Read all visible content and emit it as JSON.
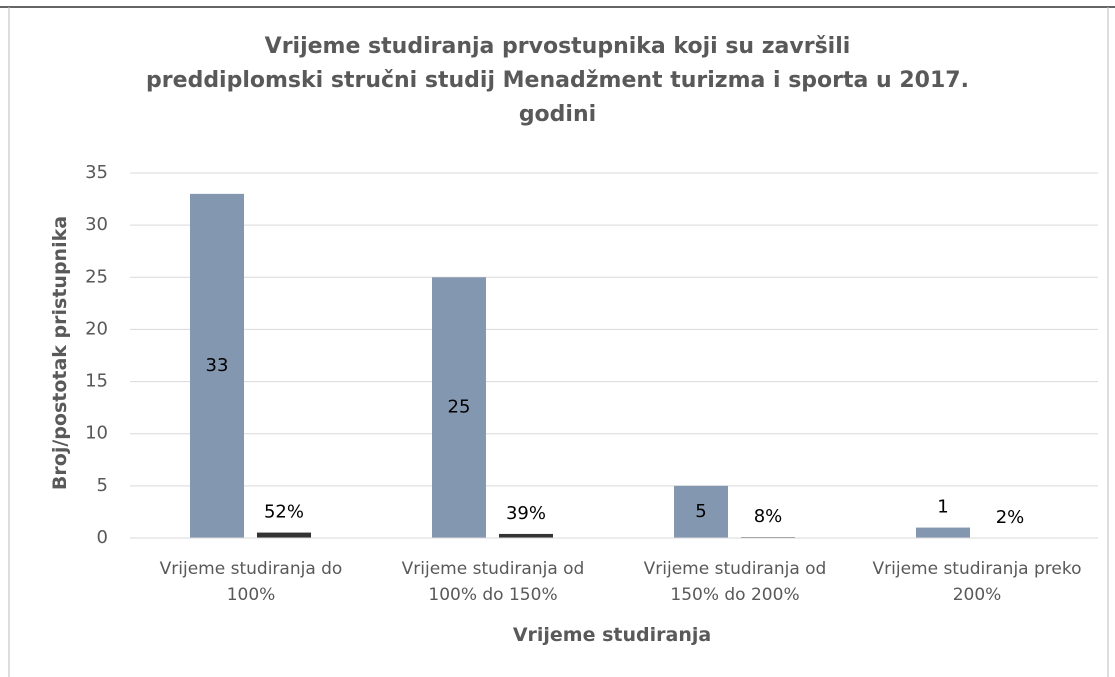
{
  "chart_data": {
    "type": "bar",
    "title": "Vrijeme studiranja prvostupnika koji su završili\npreddiplomski stručni studij Menadžment turizma i sporta u 2017.\ngodini",
    "xlabel": "Vrijeme studiranja",
    "ylabel": "Broj/postotak pristupnika",
    "categories": [
      "Vrijeme studiranja do\n100%",
      "Vrijeme studiranja od\n100% do 150%",
      "Vrijeme studiranja od\n150% do 200%",
      "Vrijeme studiranja preko\n200%"
    ],
    "series": [
      {
        "color": "#8497b0",
        "values": [
          33,
          25,
          5,
          1
        ]
      },
      {
        "color": "#333333",
        "values": [
          0.52,
          0.39,
          0.08,
          0.02
        ],
        "value_labels": [
          "52%",
          "39%",
          "8%",
          "2%"
        ]
      }
    ],
    "ylim": [
      0,
      35
    ],
    "yticks": [
      0,
      5,
      10,
      15,
      20,
      25,
      30,
      35
    ],
    "grid": true
  }
}
